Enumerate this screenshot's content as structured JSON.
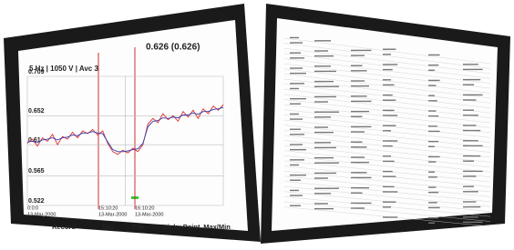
{
  "left_screen": {
    "header": "5 Hz | 1050 V | Avc 3",
    "readout": "0.626 (0.626)",
    "cursor_labels": [
      [
        "0:0:0",
        "13-Mar-2000"
      ],
      [
        "15:10:20",
        "13-Mar-2000"
      ],
      [
        "16:10:20",
        "13-Mar-2000"
      ]
    ],
    "buttons": [
      "Record",
      "Tag",
      "File",
      "Sticky Point",
      "Max/Min"
    ],
    "chart_data": {
      "type": "line",
      "x": [
        0,
        1,
        2,
        3,
        4,
        5,
        6,
        7,
        8,
        9,
        10,
        11,
        12,
        13,
        14,
        15,
        16,
        17,
        18,
        19,
        20,
        21,
        22,
        23,
        24,
        25,
        26,
        27,
        28,
        29,
        30,
        31,
        32,
        33,
        34,
        35,
        36,
        37,
        38,
        39
      ],
      "xlim": [
        0,
        39
      ],
      "ylim": [
        0.522,
        0.709
      ],
      "yticks": [
        0.522,
        0.565,
        0.61,
        0.652,
        0.709
      ],
      "grid": true,
      "series": [
        {
          "color": "#e03030",
          "values": [
            0.612,
            0.618,
            0.608,
            0.62,
            0.615,
            0.625,
            0.61,
            0.622,
            0.618,
            0.628,
            0.62,
            0.63,
            0.626,
            0.632,
            0.624,
            0.63,
            0.612,
            0.6,
            0.596,
            0.602,
            0.598,
            0.605,
            0.6,
            0.61,
            0.64,
            0.648,
            0.642,
            0.655,
            0.646,
            0.652,
            0.644,
            0.658,
            0.65,
            0.66,
            0.648,
            0.662,
            0.655,
            0.666,
            0.66,
            0.668
          ]
        },
        {
          "color": "#3040b0",
          "values": [
            0.614,
            0.615,
            0.613,
            0.617,
            0.618,
            0.62,
            0.617,
            0.62,
            0.621,
            0.624,
            0.623,
            0.627,
            0.627,
            0.629,
            0.627,
            0.626,
            0.614,
            0.603,
            0.6,
            0.6,
            0.601,
            0.603,
            0.604,
            0.612,
            0.636,
            0.644,
            0.645,
            0.649,
            0.648,
            0.65,
            0.649,
            0.653,
            0.653,
            0.656,
            0.654,
            0.658,
            0.658,
            0.661,
            0.662,
            0.664
          ]
        }
      ]
    }
  }
}
